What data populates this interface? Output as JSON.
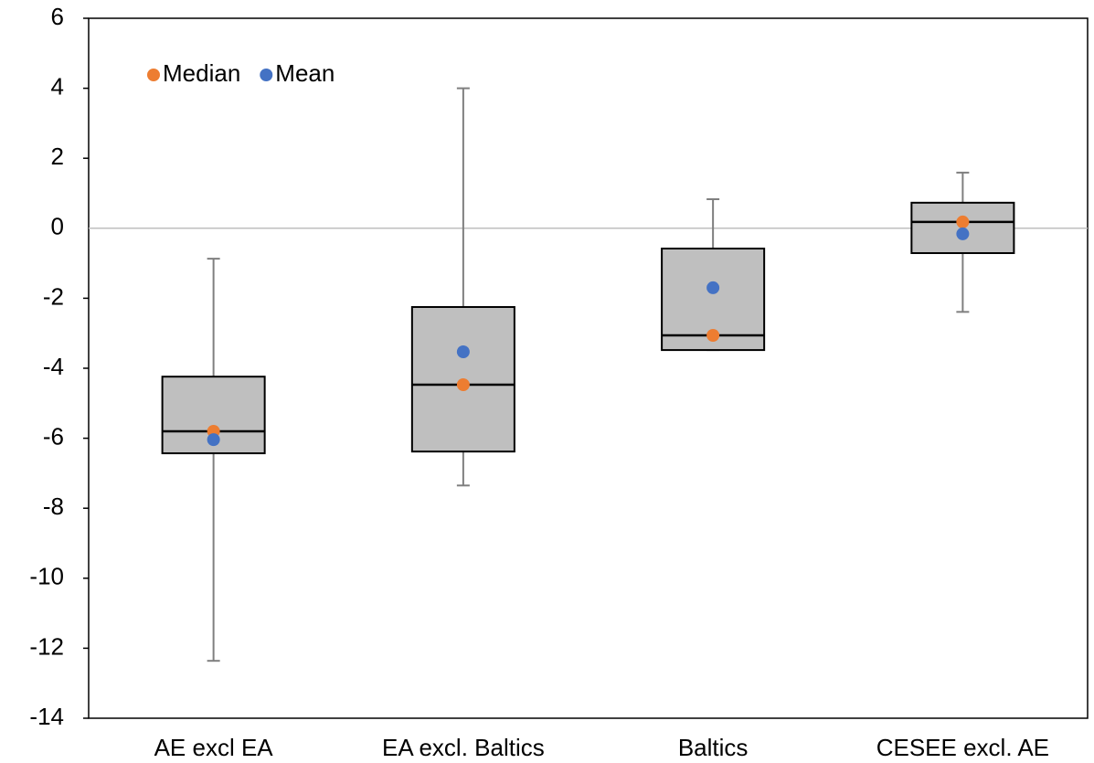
{
  "chart_data": {
    "type": "box",
    "categories": [
      "AE excl EA",
      "EA excl. Baltics",
      "Baltics",
      "CESEE excl. AE"
    ],
    "boxes": {
      "min": [
        -12.36,
        -7.35,
        -3.48,
        -2.39
      ],
      "q1": [
        -6.43,
        -6.38,
        -3.48,
        -0.71
      ],
      "q3": [
        -4.24,
        -2.25,
        -0.58,
        0.73
      ],
      "max": [
        -0.87,
        4.0,
        0.83,
        1.59
      ],
      "color": "#bfbfbf"
    },
    "series": [
      {
        "name": "Median",
        "color": "#ed7d31",
        "values": [
          -5.8,
          -4.47,
          -3.06,
          0.18
        ]
      },
      {
        "name": "Mean",
        "color": "#4472c4",
        "values": [
          -6.04,
          -3.53,
          -1.7,
          -0.16
        ]
      }
    ],
    "ylim": [
      -14,
      6
    ],
    "yticks": [
      -14,
      -12,
      -10,
      -8,
      -6,
      -4,
      -2,
      0,
      2,
      4,
      6
    ],
    "legend": "top-left"
  }
}
